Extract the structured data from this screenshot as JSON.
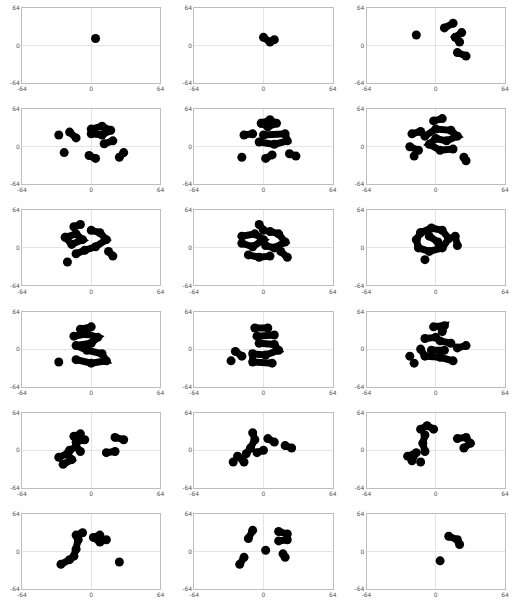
{
  "chart_data": [
    {
      "type": "line",
      "grid": true,
      "xlim": [
        -64,
        64
      ],
      "ylim": [
        -64,
        64
      ],
      "xticks": [
        -64,
        0,
        64
      ],
      "yticks": [
        -64,
        0,
        64
      ],
      "series": [
        {
          "color": "#000000",
          "x": [
            4
          ],
          "values": [
            12
          ]
        }
      ]
    },
    {
      "type": "line",
      "grid": true,
      "xlim": [
        -64,
        64
      ],
      "ylim": [
        -64,
        64
      ],
      "xticks": [
        -64,
        0,
        64
      ],
      "yticks": [
        -64,
        0,
        64
      ],
      "series": [
        {
          "color": "#000000",
          "x": [
            0,
            6,
            10
          ],
          "values": [
            14,
            6,
            10
          ]
        }
      ]
    },
    {
      "type": "line",
      "grid": true,
      "xlim": [
        -64,
        64
      ],
      "ylim": [
        -64,
        64
      ],
      "xticks": [
        -64,
        0,
        64
      ],
      "yticks": [
        -64,
        0,
        64
      ],
      "series": [
        {
          "color": "#000000",
          "x": [
            8,
            16,
            null,
            24,
            18,
            22,
            null,
            -18,
            null,
            20,
            28
          ],
          "values": [
            30,
            38,
            null,
            22,
            14,
            6,
            null,
            18,
            null,
            -12,
            -18
          ]
        }
      ]
    },
    {
      "type": "line",
      "grid": true,
      "xlim": [
        -64,
        64
      ],
      "ylim": [
        -64,
        64
      ],
      "xticks": [
        -64,
        0,
        64
      ],
      "yticks": [
        -64,
        0,
        64
      ],
      "series": [
        {
          "color": "#000000",
          "x": [
            -30,
            null,
            -20,
            -14,
            null,
            0,
            10,
            18,
            10,
            0,
            null,
            20,
            12,
            null,
            -25,
            null,
            -2,
            4,
            null,
            30,
            26
          ],
          "values": [
            20,
            null,
            25,
            15,
            null,
            30,
            35,
            28,
            20,
            22,
            null,
            10,
            5,
            null,
            -10,
            null,
            -15,
            -20,
            null,
            -10,
            -18
          ]
        }
      ]
    },
    {
      "type": "line",
      "grid": true,
      "xlim": [
        -64,
        64
      ],
      "ylim": [
        -64,
        64
      ],
      "xticks": [
        -64,
        0,
        64
      ],
      "yticks": [
        -64,
        0,
        64
      ],
      "series": [
        {
          "color": "#000000",
          "x": [
            -2,
            6,
            12,
            4,
            -2,
            null,
            -18,
            -10,
            null,
            0,
            20,
            22,
            10,
            -4,
            null,
            -20,
            null,
            2,
            8,
            null,
            24,
            30
          ],
          "values": [
            40,
            46,
            40,
            34,
            40,
            null,
            20,
            22,
            null,
            20,
            22,
            10,
            4,
            8,
            null,
            -18,
            null,
            -20,
            -14,
            null,
            -12,
            -16
          ]
        }
      ]
    },
    {
      "type": "line",
      "grid": true,
      "xlim": [
        -64,
        64
      ],
      "ylim": [
        -64,
        64
      ],
      "xticks": [
        -64,
        0,
        64
      ],
      "yticks": [
        -64,
        0,
        64
      ],
      "series": [
        {
          "color": "#000000",
          "x": [
            -2,
            6,
            null,
            -22,
            -14,
            null,
            -10,
            0,
            14,
            20,
            10,
            0,
            -6,
            4,
            16,
            null,
            -24,
            -16,
            null,
            -20,
            null,
            26,
            28
          ],
          "values": [
            44,
            48,
            null,
            22,
            26,
            null,
            18,
            30,
            28,
            18,
            10,
            14,
            4,
            -6,
            -4,
            null,
            0,
            -6,
            null,
            -16,
            null,
            -18,
            -24
          ]
        }
      ]
    },
    {
      "type": "line",
      "grid": true,
      "xlim": [
        -64,
        64
      ],
      "ylim": [
        -64,
        64
      ],
      "xticks": [
        -64,
        0,
        64
      ],
      "yticks": [
        -64,
        0,
        64
      ],
      "series": [
        {
          "color": "#000000",
          "x": [
            -16,
            -10,
            null,
            -24,
            -14,
            -8,
            -18,
            -24,
            null,
            0,
            8,
            14,
            4,
            -6,
            -14,
            null,
            16,
            20,
            null,
            -22
          ],
          "values": [
            36,
            40,
            null,
            18,
            24,
            14,
            6,
            18,
            null,
            30,
            26,
            14,
            2,
            -4,
            -10,
            null,
            -6,
            -14,
            null,
            -24
          ]
        }
      ]
    },
    {
      "type": "line",
      "grid": true,
      "xlim": [
        -64,
        64
      ],
      "ylim": [
        -64,
        64
      ],
      "xticks": [
        -64,
        0,
        64
      ],
      "yticks": [
        -64,
        0,
        64
      ],
      "series": [
        {
          "color": "#000000",
          "x": [
            -4,
            0,
            null,
            -20,
            -8,
            0,
            -10,
            -20,
            null,
            6,
            14,
            20,
            10,
            2,
            null,
            -14,
            -4,
            6,
            null,
            16,
            22
          ],
          "values": [
            40,
            30,
            null,
            20,
            24,
            14,
            2,
            8,
            null,
            28,
            24,
            10,
            0,
            4,
            null,
            -12,
            -16,
            -14,
            null,
            -6,
            -16
          ]
        }
      ]
    },
    {
      "type": "line",
      "grid": true,
      "xlim": [
        -64,
        64
      ],
      "ylim": [
        -64,
        64
      ],
      "xticks": [
        -64,
        0,
        64
      ],
      "yticks": [
        -64,
        0,
        64
      ],
      "series": [
        {
          "color": "#000000",
          "x": [
            -14,
            -4,
            6,
            12,
            6,
            -6,
            -16,
            -18,
            -14,
            null,
            -6,
            2,
            null,
            18,
            20,
            null,
            -10
          ],
          "values": [
            26,
            34,
            30,
            16,
            0,
            -6,
            0,
            14,
            26,
            null,
            20,
            10,
            null,
            20,
            4,
            null,
            -20
          ]
        }
      ]
    },
    {
      "type": "line",
      "grid": true,
      "xlim": [
        -64,
        64
      ],
      "ylim": [
        -64,
        64
      ],
      "xticks": [
        -64,
        0,
        64
      ],
      "yticks": [
        -64,
        0,
        64
      ],
      "series": [
        {
          "color": "#000000",
          "x": [
            -10,
            0,
            null,
            -16,
            -4,
            6,
            0,
            -14,
            -4,
            10,
            14,
            0,
            -14,
            null,
            -30
          ],
          "values": [
            34,
            38,
            null,
            22,
            26,
            20,
            10,
            6,
            -2,
            -8,
            -20,
            -24,
            -18,
            null,
            -22
          ]
        }
      ]
    },
    {
      "type": "line",
      "grid": true,
      "xlim": [
        -64,
        64
      ],
      "ylim": [
        -64,
        64
      ],
      "xticks": [
        -64,
        0,
        64
      ],
      "yticks": [
        -64,
        0,
        64
      ],
      "series": [
        {
          "color": "#000000",
          "x": [
            -8,
            4,
            null,
            -6,
            10,
            null,
            -4,
            10,
            14,
            2,
            -10,
            -10,
            8,
            null,
            -26,
            -20,
            null,
            -30
          ],
          "values": [
            36,
            36,
            null,
            22,
            24,
            null,
            10,
            8,
            -2,
            -10,
            -8,
            -22,
            -24,
            null,
            -4,
            -12,
            null,
            -20
          ]
        }
      ]
    },
    {
      "type": "line",
      "grid": true,
      "xlim": [
        -64,
        64
      ],
      "ylim": [
        -64,
        64
      ],
      "xticks": [
        -64,
        0,
        64
      ],
      "yticks": [
        -64,
        0,
        64
      ],
      "series": [
        {
          "color": "#000000",
          "x": [
            -2,
            8,
            6,
            null,
            -10,
            0,
            null,
            4,
            14,
            null,
            -14,
            -10,
            4,
            16,
            null,
            -24,
            null,
            -4,
            8,
            null,
            20,
            28,
            null,
            -20
          ],
          "values": [
            38,
            40,
            30,
            null,
            18,
            20,
            null,
            14,
            10,
            null,
            0,
            -12,
            -14,
            -20,
            null,
            -12,
            null,
            -2,
            -2,
            null,
            2,
            6,
            null,
            -24
          ]
        }
      ]
    },
    {
      "type": "line",
      "grid": true,
      "xlim": [
        -64,
        64
      ],
      "ylim": [
        -64,
        64
      ],
      "xticks": [
        -64,
        0,
        64
      ],
      "yticks": [
        -64,
        0,
        64
      ],
      "series": [
        {
          "color": "#000000",
          "x": [
            -16,
            -10,
            null,
            -14,
            -6,
            null,
            -20,
            -14,
            -10,
            null,
            -30,
            -22,
            -18,
            -26,
            null,
            22,
            30,
            null,
            14,
            22
          ],
          "values": [
            24,
            28,
            null,
            14,
            18,
            null,
            0,
            6,
            -2,
            null,
            -12,
            -6,
            -16,
            -24,
            null,
            22,
            18,
            null,
            -4,
            -2
          ]
        }
      ]
    },
    {
      "type": "line",
      "grid": true,
      "xlim": [
        -64,
        64
      ],
      "ylim": [
        -64,
        64
      ],
      "xticks": [
        -64,
        0,
        64
      ],
      "yticks": [
        -64,
        0,
        64
      ],
      "series": [
        {
          "color": "#000000",
          "x": [
            -10,
            -8,
            -12,
            -16,
            null,
            -24,
            -18,
            null,
            -6,
            0,
            null,
            4,
            10,
            null,
            20,
            26,
            null,
            -28
          ],
          "values": [
            30,
            18,
            4,
            -6,
            null,
            -10,
            -20,
            null,
            -4,
            0,
            null,
            20,
            14,
            null,
            8,
            4,
            null,
            -20
          ]
        }
      ]
    },
    {
      "type": "line",
      "grid": true,
      "xlim": [
        -64,
        64
      ],
      "ylim": [
        -64,
        64
      ],
      "xticks": [
        -64,
        0,
        64
      ],
      "yticks": [
        -64,
        0,
        64
      ],
      "series": [
        {
          "color": "#000000",
          "x": [
            -14,
            -8,
            -2,
            null,
            -10,
            -12,
            -10,
            null,
            -26,
            -18,
            -22,
            null,
            20,
            28,
            32,
            26,
            null,
            -14
          ],
          "values": [
            36,
            42,
            36,
            null,
            26,
            12,
            -2,
            null,
            -10,
            -4,
            -18,
            null,
            20,
            22,
            12,
            4,
            null,
            -20
          ]
        }
      ]
    },
    {
      "type": "line",
      "grid": true,
      "xlim": [
        -64,
        64
      ],
      "ylim": [
        -64,
        64
      ],
      "xticks": [
        -64,
        0,
        64
      ],
      "yticks": [
        -64,
        0,
        64
      ],
      "series": [
        {
          "color": "#000000",
          "x": [
            -14,
            -8,
            null,
            -12,
            -14,
            -16,
            null,
            -28,
            -20,
            null,
            8,
            2,
            8,
            14,
            null,
            26
          ],
          "values": [
            28,
            32,
            null,
            20,
            4,
            -8,
            null,
            -22,
            -14,
            null,
            28,
            24,
            16,
            20,
            null,
            -18
          ]
        }
      ]
    },
    {
      "type": "line",
      "grid": true,
      "xlim": [
        -64,
        64
      ],
      "ylim": [
        -64,
        64
      ],
      "xticks": [
        -64,
        0,
        64
      ],
      "yticks": [
        -64,
        0,
        64
      ],
      "series": [
        {
          "color": "#000000",
          "x": [
            -10,
            -14,
            null,
            -18,
            -22,
            null,
            14,
            22,
            22,
            14,
            null,
            18,
            20,
            null,
            2
          ],
          "values": [
            36,
            22,
            null,
            -10,
            -22,
            null,
            34,
            30,
            20,
            18,
            null,
            -4,
            -10,
            null,
            2
          ]
        }
      ]
    },
    {
      "type": "line",
      "grid": true,
      "xlim": [
        -64,
        64
      ],
      "ylim": [
        -64,
        64
      ],
      "xticks": [
        -64,
        0,
        64
      ],
      "yticks": [
        -64,
        0,
        64
      ],
      "series": [
        {
          "color": "#000000",
          "x": [
            12,
            20,
            22,
            null,
            4
          ],
          "values": [
            26,
            20,
            12,
            null,
            -16
          ]
        }
      ]
    }
  ]
}
